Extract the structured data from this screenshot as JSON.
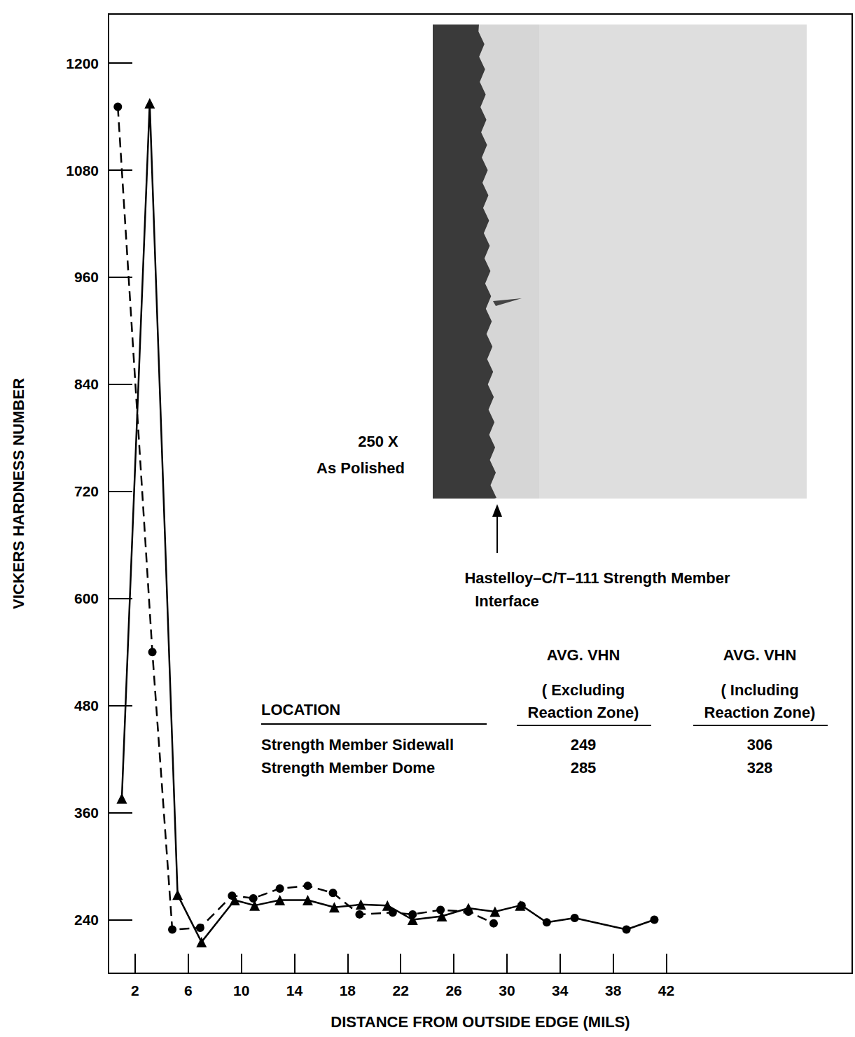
{
  "chart_data": {
    "type": "line",
    "x_label": "DISTANCE FROM OUTSIDE EDGE (MILS)",
    "y_label": "VICKERS HARDNESS NUMBER",
    "xlim": [
      0,
      56
    ],
    "ylim": [
      180,
      1255
    ],
    "xticks": [
      2,
      6,
      10,
      14,
      18,
      22,
      26,
      30,
      34,
      38,
      42
    ],
    "yticks": [
      240,
      360,
      480,
      600,
      720,
      840,
      960,
      1080,
      1200
    ],
    "grid": false,
    "series": [
      {
        "color": "#000000",
        "marker": "circle",
        "line_style": "dashed",
        "x": [
          0.7,
          3.3,
          4.8,
          6.9,
          9.3,
          10.9,
          12.9,
          15.0,
          16.9,
          18.9,
          21.4,
          22.9,
          25.0,
          27.1,
          29.0
        ],
        "values": [
          1151,
          540,
          229,
          231,
          267,
          264,
          275,
          278,
          270,
          246,
          248,
          246,
          251,
          249,
          236
        ]
      },
      {
        "color": "#000000",
        "marker": "triangle",
        "line_style": "solid",
        "x": [
          1.0,
          3.1,
          5.2,
          7.0,
          9.5,
          11.0,
          12.9,
          15.0,
          17.0,
          19.0,
          21.0,
          22.9,
          25.1,
          27.1,
          29.1,
          31.0
        ],
        "values": [
          376,
          1155,
          268,
          215,
          262,
          256,
          262,
          262,
          254,
          257,
          256,
          240,
          244,
          253,
          249,
          256
        ]
      },
      {
        "color": "#000000",
        "marker": "circle",
        "line_style": "solid",
        "x": [
          31.1,
          33.0,
          35.1,
          39.0,
          41.1
        ],
        "values": [
          256,
          237,
          242,
          229,
          240
        ]
      }
    ],
    "annotations": {
      "magnification": "250 X",
      "condition": "As Polished",
      "interface_label": [
        "Hastelloy–C/T–111 Strength Member",
        "Interface"
      ]
    },
    "table": {
      "columns": [
        "LOCATION",
        [
          "AVG. VHN",
          "( Excluding",
          "Reaction Zone)"
        ],
        [
          "AVG. VHN",
          "( Including",
          "Reaction Zone)"
        ]
      ],
      "rows": [
        [
          "Strength Member Sidewall",
          249,
          306
        ],
        [
          "Strength Member Dome",
          285,
          328
        ]
      ]
    }
  }
}
